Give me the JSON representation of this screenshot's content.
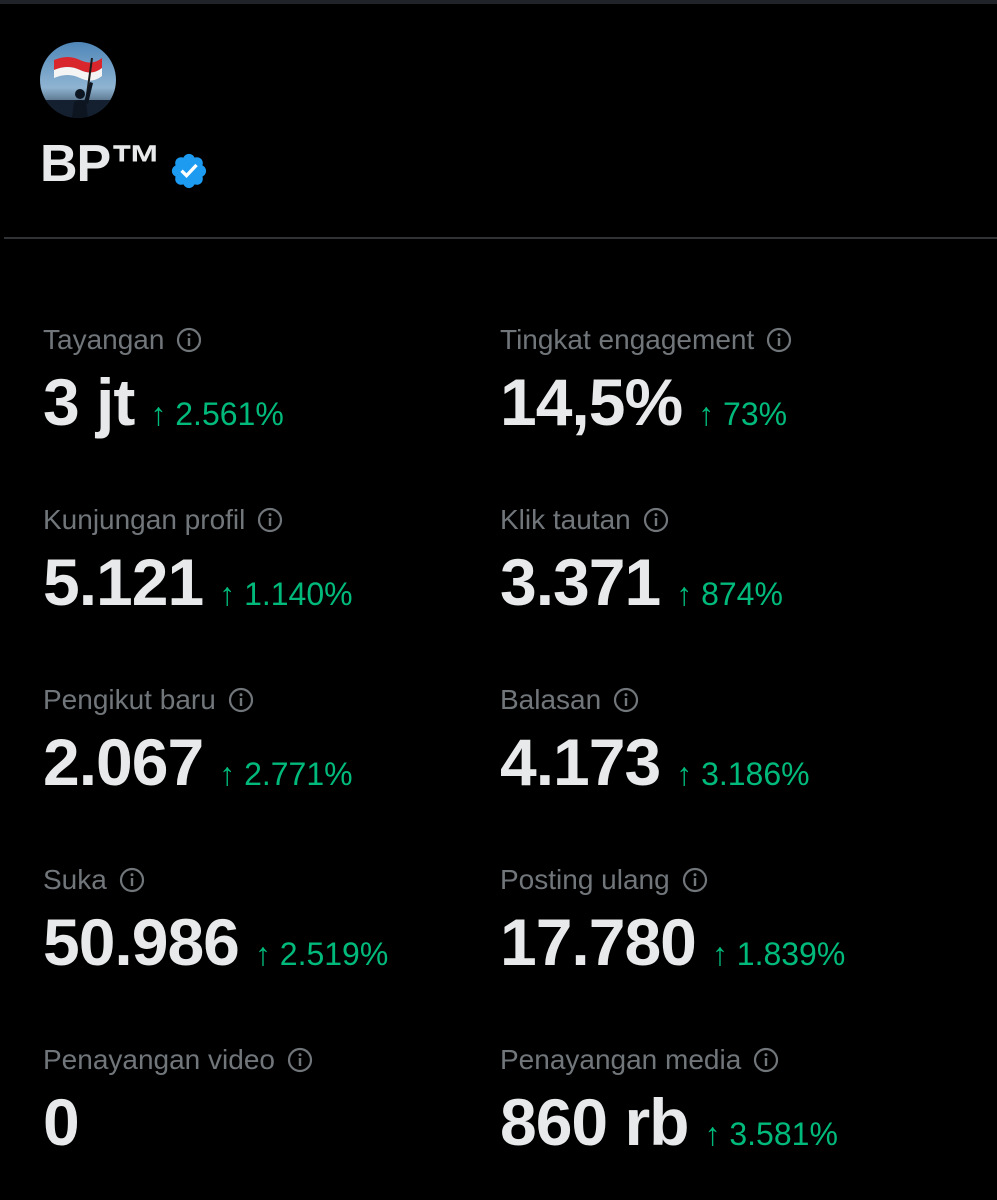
{
  "profile": {
    "name": "BP™"
  },
  "colors": {
    "background": "#000000",
    "label": "#71767b",
    "value": "#e7e9ea",
    "positive": "#00ba7c",
    "verified": "#1d9bf0",
    "divider": "#2f3336"
  },
  "icons": {
    "verified": "verified-badge-icon",
    "info": "info-circle-icon"
  },
  "metrics": [
    {
      "label": "Tayangan",
      "value": "3 jt",
      "change": "↑ 2.561%"
    },
    {
      "label": "Tingkat engagement",
      "value": "14,5%",
      "change": "↑ 73%"
    },
    {
      "label": "Kunjungan profil",
      "value": "5.121",
      "change": "↑ 1.140%"
    },
    {
      "label": "Klik tautan",
      "value": "3.371",
      "change": "↑ 874%"
    },
    {
      "label": "Pengikut baru",
      "value": "2.067",
      "change": "↑ 2.771%"
    },
    {
      "label": "Balasan",
      "value": "4.173",
      "change": "↑ 3.186%"
    },
    {
      "label": "Suka",
      "value": "50.986",
      "change": "↑ 2.519%"
    },
    {
      "label": "Posting ulang",
      "value": "17.780",
      "change": "↑ 1.839%"
    },
    {
      "label": "Penayangan video",
      "value": "0",
      "change": ""
    },
    {
      "label": "Penayangan media",
      "value": "860 rb",
      "change": "↑ 3.581%"
    }
  ]
}
